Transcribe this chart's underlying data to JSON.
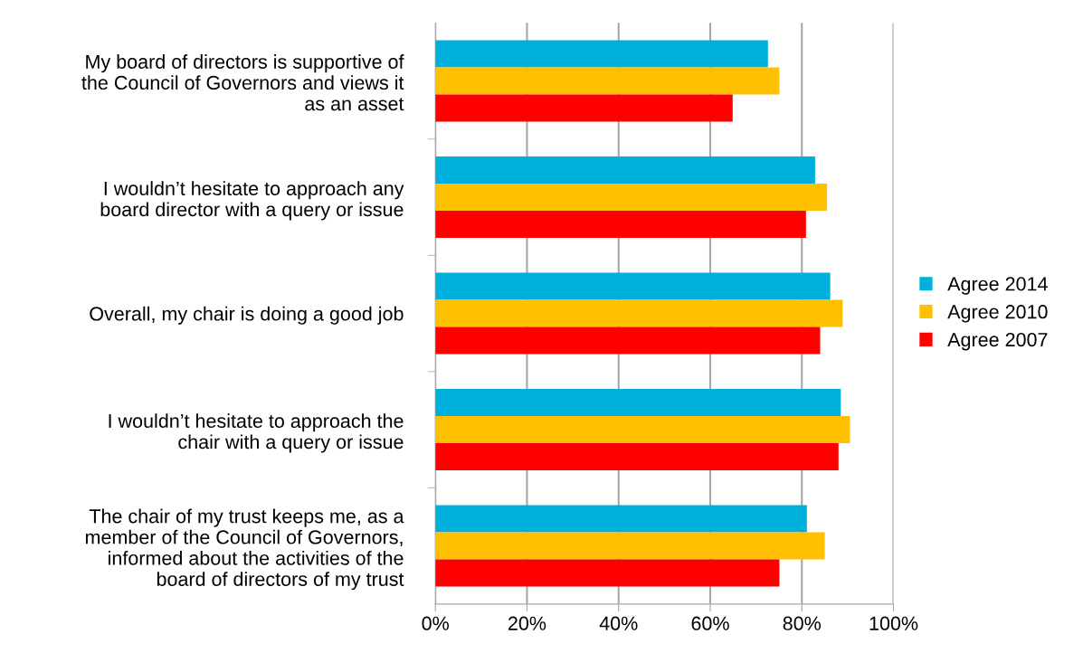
{
  "chart_data": {
    "type": "bar",
    "orientation": "horizontal",
    "categories": [
      "My board of directors is supportive of\nthe Council of Governors and views it\nas an asset",
      "I wouldn’t hesitate to approach any\nboard director with a query or issue",
      "Overall, my chair is doing a good job",
      "I wouldn’t hesitate to approach the\nchair with a query or issue",
      "The chair of my trust keeps me, as a\nmember of the Council of Governors,\ninformed about the activities of the\nboard of directors of my trust"
    ],
    "series": [
      {
        "name": "Agree 2014",
        "color": "#00b0dc",
        "values": [
          72.6,
          82.9,
          86.2,
          88.5,
          81.1
        ]
      },
      {
        "name": "Agree 2010",
        "color": "#ffc000",
        "values": [
          75.1,
          85.5,
          88.9,
          90.5,
          85.0
        ]
      },
      {
        "name": "Agree 2007",
        "color": "#ff0000",
        "values": [
          64.9,
          80.9,
          84.0,
          88.0,
          75.1
        ]
      }
    ],
    "xlim": [
      0,
      100
    ],
    "xticks": [
      {
        "value": 0,
        "label": "0%"
      },
      {
        "value": 20,
        "label": "20%"
      },
      {
        "value": 40,
        "label": "40%"
      },
      {
        "value": 60,
        "label": "60%"
      },
      {
        "value": 80,
        "label": "80%"
      },
      {
        "value": 100,
        "label": "100%"
      }
    ],
    "grid": "x",
    "legend": "right"
  }
}
